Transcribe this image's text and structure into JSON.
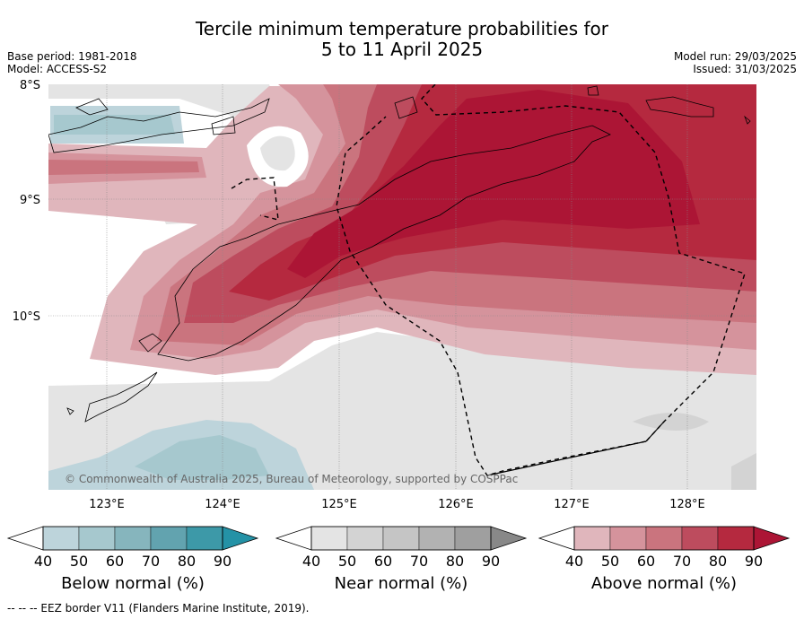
{
  "title_line1": "Tercile minimum temperature probabilities for",
  "title_line2": "5 to 11 April 2025",
  "base_period": "Base period: 1981-2018",
  "model": "Model: ACCESS-S2",
  "model_run": "Model run: 29/03/2025",
  "issued": "Issued: 31/03/2025",
  "lat_labels": [
    "8°S",
    "9°S",
    "10°S"
  ],
  "lon_labels": [
    "123°E",
    "124°E",
    "125°E",
    "126°E",
    "127°E",
    "128°E"
  ],
  "copyright": "© Commonwealth of Australia 2025, Bureau of Meteorology, supported by COSPPac",
  "colorbars": [
    {
      "title": "Below normal (%)",
      "ticks": [
        "40",
        "50",
        "60",
        "70",
        "80",
        "90"
      ],
      "colors": [
        "#ffffff",
        "#bdd4db",
        "#a6c8ce",
        "#86b5bd",
        "#62a3af",
        "#3d99a8",
        "#2492a6"
      ]
    },
    {
      "title": "Near normal (%)",
      "ticks": [
        "40",
        "50",
        "60",
        "70",
        "80",
        "90"
      ],
      "colors": [
        "#ffffff",
        "#e4e4e4",
        "#d3d3d3",
        "#c5c5c5",
        "#b2b2b2",
        "#9f9f9f",
        "#888888"
      ]
    },
    {
      "title": "Above normal (%)",
      "ticks": [
        "40",
        "50",
        "60",
        "70",
        "80",
        "90"
      ],
      "colors": [
        "#ffffff",
        "#e0b6bc",
        "#d5939c",
        "#ca747e",
        "#bd4c5e",
        "#b5293f",
        "#ac1535"
      ]
    }
  ],
  "footer": "--  --  -- EEZ border V11 (Flanders Marine Institute, 2019)."
}
